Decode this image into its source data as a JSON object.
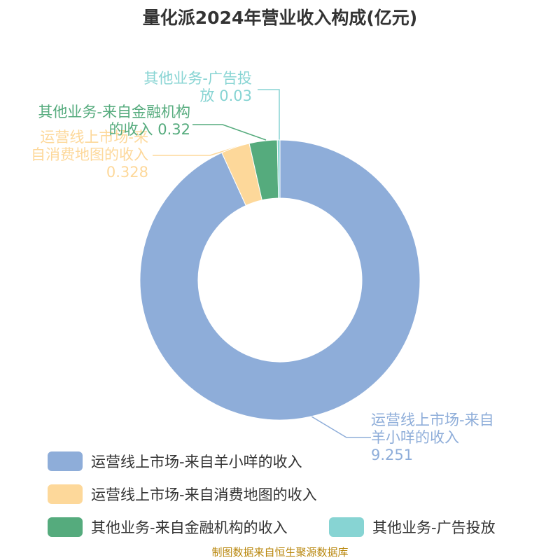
{
  "chart_data": {
    "type": "donut",
    "title": "量化派2024年营业收入构成(亿元)",
    "categories": [
      "运营线上市场-来自羊小咩的收入",
      "运营线上市场-来自消费地图的收入",
      "其他业务-来自金融机构的收入",
      "其他业务-广告投放"
    ],
    "values": [
      9.251,
      0.328,
      0.32,
      0.03
    ],
    "colors": [
      "#8eadd9",
      "#fdd89a",
      "#55ab7d",
      "#87d4d3"
    ],
    "source": "制图数据来自恒生聚源数据库"
  }
}
